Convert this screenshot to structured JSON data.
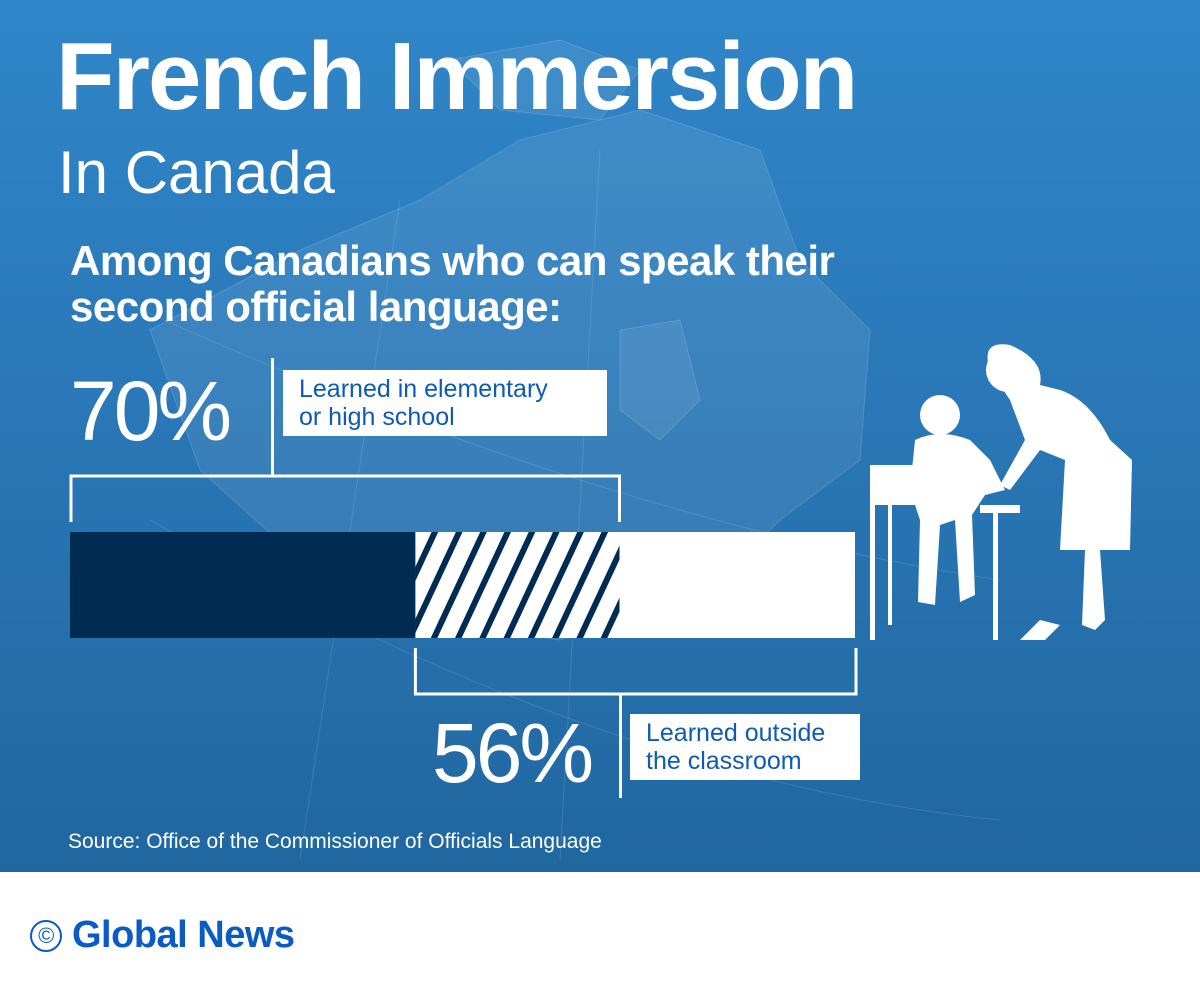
{
  "header": {
    "title": "French Immersion",
    "subtitle": "In Canada"
  },
  "lead": "Among Canadians who can speak their second official language:",
  "chart_data": {
    "type": "bar",
    "orientation": "horizontal",
    "scale": [
      0,
      100
    ],
    "series": [
      {
        "value": 70,
        "value_label": "70%",
        "label": "Learned in elementary or high school",
        "anchor": "left",
        "color": "#002b52"
      },
      {
        "value": 56,
        "value_label": "56%",
        "label": "Learned outside the classroom",
        "anchor": "right",
        "color": "#ffffff"
      }
    ],
    "overlap_pattern": "diagonal-stripes"
  },
  "label1": {
    "line1": "Learned in elementary",
    "line2": "or high school"
  },
  "label2": {
    "line1": "Learned outside",
    "line2": "the classroom"
  },
  "source": "Source: Office of the Commissioner of Officials Language",
  "footer": {
    "copyright_symbol": "©",
    "brand": "Global News"
  },
  "colors": {
    "background": "#2a78b8",
    "dark": "#002b52",
    "brand": "#0a5bc4"
  }
}
